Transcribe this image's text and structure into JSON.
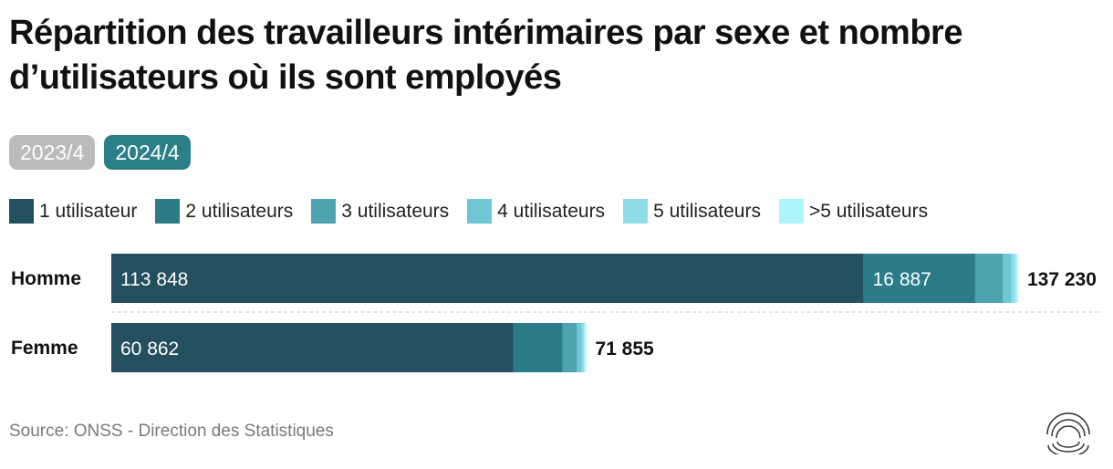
{
  "title": "Répartition des travailleurs intérimaires par sexe et nombre d’utilisateurs où ils sont employés",
  "tabs": [
    {
      "label": "2023/4",
      "active": false
    },
    {
      "label": "2024/4",
      "active": true
    }
  ],
  "source": "Source: ONSS - Direction des Statistiques",
  "logo_icon": "concentric-arcs-logo",
  "colors": {
    "inactive_tab": "#b9bbbd",
    "active_tab": "#2a7f88",
    "separator": "#c8c8c8"
  },
  "chart_data": {
    "type": "bar",
    "orientation": "horizontal",
    "stacked": true,
    "categories": [
      "Homme",
      "Femme"
    ],
    "series": [
      {
        "name": "1 utilisateur",
        "color": "#244f5e",
        "values": [
          113848,
          60862
        ]
      },
      {
        "name": "2 utilisateurs",
        "color": "#2b7b89",
        "values": [
          16887,
          7400
        ]
      },
      {
        "name": "3 utilisateurs",
        "color": "#4fa2b0",
        "values": [
          4200,
          2200
        ]
      },
      {
        "name": "4 utilisateurs",
        "color": "#6fc6d4",
        "values": [
          1300,
          700
        ]
      },
      {
        "name": "5 utilisateurs",
        "color": "#8fdde8",
        "values": [
          600,
          400
        ]
      },
      {
        "name": ">5 utilisateurs",
        "color": "#aef4fb",
        "values": [
          395,
          293
        ]
      }
    ],
    "value_labels": {
      "1 utilisateur": [
        "113 848",
        "60 862"
      ],
      "2 utilisateurs": [
        "16 887",
        ""
      ]
    },
    "totals": [
      137230,
      71855
    ],
    "total_labels": [
      "137 230",
      "71 855"
    ],
    "xlim": [
      0,
      137230
    ],
    "legend_position": "top-left",
    "grid": false
  }
}
